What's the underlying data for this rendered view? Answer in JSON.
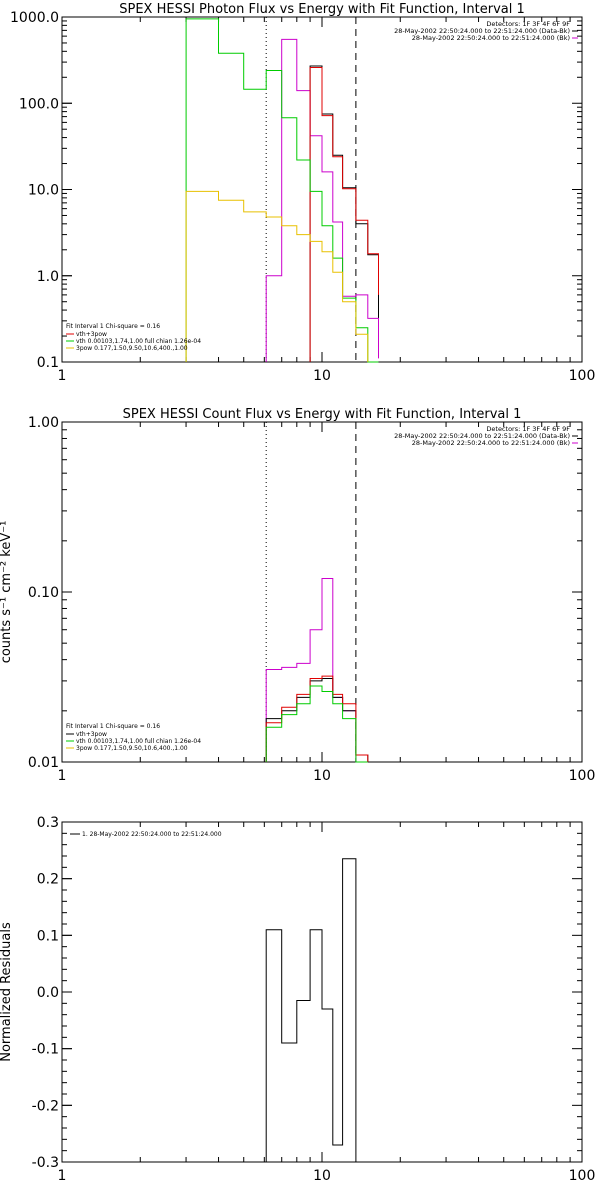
{
  "chart_data": [
    {
      "type": "line",
      "title": "SPEX HESSI Photon Flux vs Energy with Fit Function, Interval 1",
      "xscale": "log",
      "yscale": "log",
      "xlim": [
        1,
        100
      ],
      "ylim": [
        0.1,
        1000
      ],
      "xtick_labels": [
        "1",
        "10",
        "100"
      ],
      "ytick_labels": [
        "1000.0",
        "100.0",
        "10.0",
        "1.0",
        "0.1"
      ],
      "ytick_values": [
        1000,
        100,
        10,
        1,
        0.1
      ],
      "info_lines": [
        "Detectors: 1F 3F 4F 6F 9F",
        "28-May-2002 22:50:24.000 to 22:51:24.000 (Data-Bk)",
        "28-May-2002 22:50:24.000 to 22:51:24.000 (Bk)"
      ],
      "fit_text": "Fit Interval 1    Chi-square = 0.16",
      "legend": [
        {
          "label": "vth+3pow",
          "color": "#e00000"
        },
        {
          "label": "vth 0.00103,1.74,1.00  full chian 1.26e-04",
          "color": "#00cc00"
        },
        {
          "label": "3pow 0.177,1.50,9.50,10.6,400.,1.00",
          "color": "#e8c000"
        }
      ],
      "vlines": [
        {
          "x": 6.1,
          "style": "dotted"
        },
        {
          "x": 13.5,
          "style": "dashed"
        }
      ],
      "edges": [
        3,
        4,
        5,
        6.1,
        7,
        8,
        9,
        10,
        11,
        12,
        13.5,
        15,
        16.5
      ],
      "series": [
        {
          "name": "Data-Bk",
          "color": "#000000",
          "edges_start": 6,
          "values": [
            270,
            75,
            25,
            10.5,
            4,
            1.75,
            0.3,
            0.11
          ]
        },
        {
          "name": "Bk",
          "color": "#cc00cc",
          "edges_start": 3,
          "values": [
            1,
            550,
            140,
            42,
            16,
            4.2,
            0.58,
            0.6,
            0.32,
            0.11
          ]
        },
        {
          "name": "vth+3pow",
          "color": "#e00000",
          "edges_start": 6,
          "values": [
            260,
            72,
            24,
            10.2,
            4.4,
            1.8,
            0.6,
            0.3,
            0.11
          ]
        },
        {
          "name": "vth",
          "color": "#00cc00",
          "edges_start": 0,
          "values": [
            950,
            380,
            145,
            240,
            68,
            22,
            9.5,
            3.8,
            1.6,
            0.55,
            0.25,
            0.1
          ]
        },
        {
          "name": "3pow",
          "color": "#e8c000",
          "edges_start": 0,
          "values": [
            9.5,
            7.5,
            5.5,
            4.8,
            3.8,
            3.0,
            2.5,
            1.9,
            1.1,
            0.5,
            0.21
          ]
        }
      ]
    },
    {
      "type": "line",
      "title": "SPEX HESSI Count Flux vs Energy with Fit Function, Interval 1",
      "ylabel": "counts s⁻¹ cm⁻² keV⁻¹",
      "xscale": "log",
      "yscale": "log",
      "xlim": [
        1,
        100
      ],
      "ylim": [
        0.01,
        1.0
      ],
      "xtick_labels": [
        "1",
        "10",
        "100"
      ],
      "ytick_labels": [
        "1.00",
        "0.10",
        "0.01"
      ],
      "ytick_values": [
        1,
        0.1,
        0.01
      ],
      "info_lines": [
        "Detectors: 1F 3F 4F 6F 9F",
        "28-May-2002 22:50:24.000 to 22:51:24.000 (Data-Bk)",
        "28-May-2002 22:50:24.000 to 22:51:24.000 (Bk)"
      ],
      "fit_text": "Fit Interval 1    Chi-square = 0.16",
      "legend": [
        {
          "label": "vth+3pow",
          "color": "#000000"
        },
        {
          "label": "vth 0.00103,1.74,1.00  full chian 1.26e-04",
          "color": "#00cc00"
        },
        {
          "label": "3pow 0.177,1.50,9.50,10.6,400.,1.00",
          "color": "#e8c000"
        }
      ],
      "vlines": [
        {
          "x": 6.1,
          "style": "dotted"
        },
        {
          "x": 13.5,
          "style": "dashed"
        }
      ],
      "edges": [
        6.1,
        7,
        8,
        9,
        10,
        11,
        12,
        13.5,
        15,
        16.5
      ],
      "series": [
        {
          "name": "Bk",
          "color": "#cc00cc",
          "edges_start": 0,
          "values": [
            0.035,
            0.036,
            0.038,
            0.06,
            0.12,
            0.024,
            0.02,
            0.01
          ]
        },
        {
          "name": "Data-Bk",
          "color": "#000000",
          "edges_start": 0,
          "values": [
            0.018,
            0.02,
            0.024,
            0.03,
            0.031,
            0.024,
            0.02,
            0.011
          ]
        },
        {
          "name": "vth+3pow",
          "color": "#e00000",
          "edges_start": 0,
          "values": [
            0.017,
            0.021,
            0.025,
            0.031,
            0.032,
            0.025,
            0.022,
            0.011
          ]
        },
        {
          "name": "vth",
          "color": "#00cc00",
          "edges_start": 0,
          "values": [
            0.016,
            0.019,
            0.022,
            0.028,
            0.026,
            0.022,
            0.018,
            0.01
          ]
        }
      ]
    },
    {
      "type": "line",
      "ylabel": "Normalized Residuals",
      "xscale": "log",
      "yscale": "linear",
      "xlim": [
        1,
        100
      ],
      "ylim": [
        -0.3,
        0.3
      ],
      "xtick_labels": [
        "1",
        "10",
        "100"
      ],
      "ytick_labels": [
        "0.3",
        "0.2",
        "0.1",
        "0.0",
        "-0.1",
        "-0.2",
        "-0.3"
      ],
      "ytick_values": [
        0.3,
        0.2,
        0.1,
        0.0,
        -0.1,
        -0.2,
        -0.3
      ],
      "legend": [
        {
          "label": "1. 28-May-2002 22:50:24.000 to 22:51:24.000",
          "color": "#000000"
        }
      ],
      "edges": [
        6.1,
        7,
        8,
        9,
        10,
        11,
        12,
        13.5
      ],
      "series": [
        {
          "name": "1. 28-May-2002 22:50:24.000 to 22:51:24.000",
          "color": "#000000",
          "edges_start": 0,
          "values": [
            0.11,
            -0.09,
            -0.015,
            0.11,
            -0.03,
            -0.27,
            0.235
          ]
        }
      ]
    }
  ]
}
